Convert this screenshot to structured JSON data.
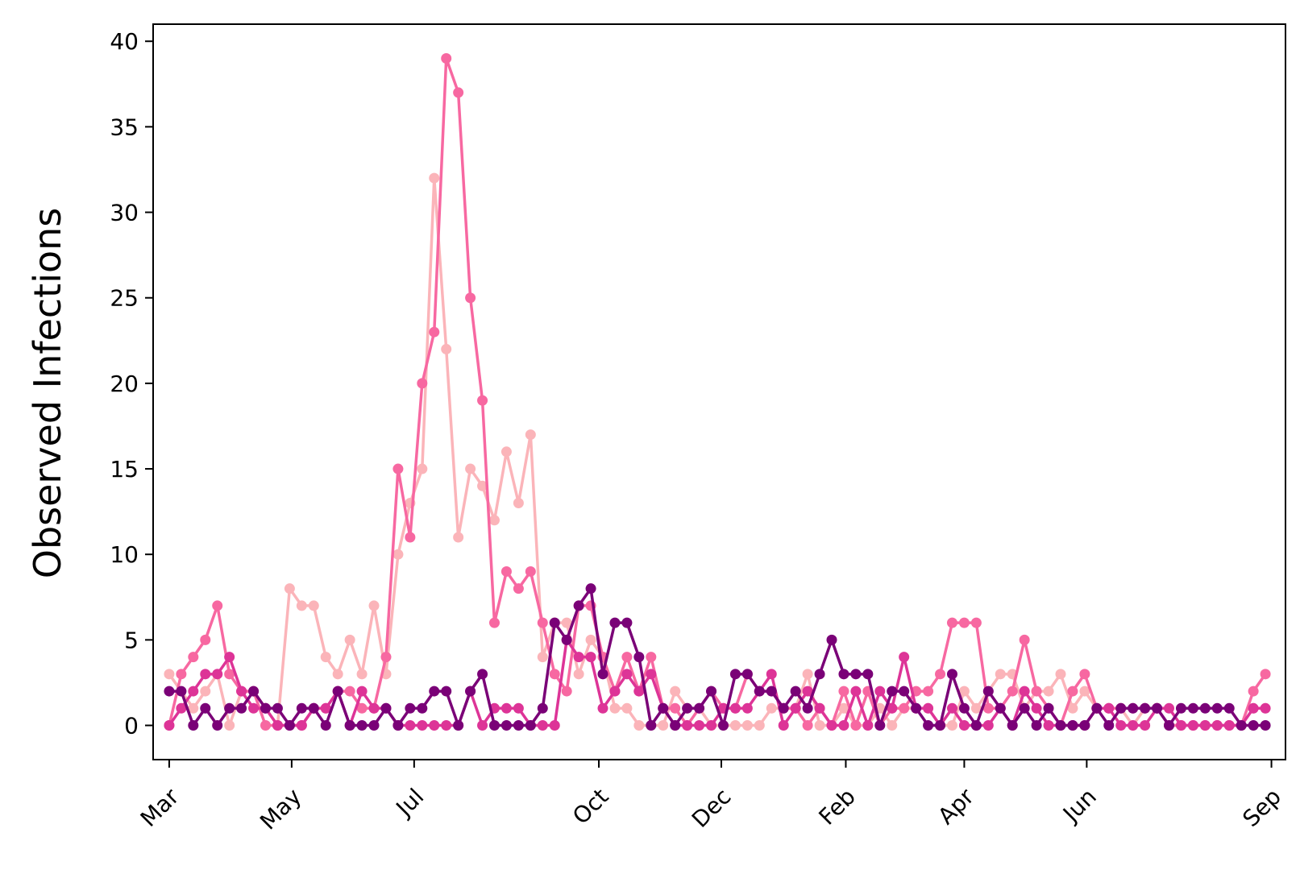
{
  "chart_data": {
    "type": "line",
    "title": "",
    "xlabel": "",
    "ylabel": "Observed Infections",
    "ylim": [
      -2,
      41
    ],
    "yticks": [
      0,
      5,
      10,
      15,
      20,
      25,
      30,
      35,
      40
    ],
    "xlim": [
      "2020-02-22",
      "2021-09-08"
    ],
    "xticks": [
      {
        "label": "Mar",
        "date": "2020-03-01"
      },
      {
        "label": "May",
        "date": "2020-05-01"
      },
      {
        "label": "Jul",
        "date": "2020-07-01"
      },
      {
        "label": "Oct",
        "date": "2020-10-01"
      },
      {
        "label": "Dec",
        "date": "2020-12-01"
      },
      {
        "label": "Feb",
        "date": "2021-02-01"
      },
      {
        "label": "Apr",
        "date": "2021-04-01"
      },
      {
        "label": "Jun",
        "date": "2021-06-01"
      },
      {
        "label": "Sep",
        "date": "2021-09-01"
      }
    ],
    "grid": false,
    "legend": null,
    "x": [
      "2020-03-01",
      "2020-03-07",
      "2020-03-13",
      "2020-03-19",
      "2020-03-25",
      "2020-03-31",
      "2020-04-06",
      "2020-04-12",
      "2020-04-18",
      "2020-04-24",
      "2020-04-30",
      "2020-05-06",
      "2020-05-12",
      "2020-05-18",
      "2020-05-24",
      "2020-05-30",
      "2020-06-05",
      "2020-06-11",
      "2020-06-17",
      "2020-06-23",
      "2020-06-29",
      "2020-07-05",
      "2020-07-11",
      "2020-07-17",
      "2020-07-23",
      "2020-07-29",
      "2020-08-04",
      "2020-08-10",
      "2020-08-16",
      "2020-08-22",
      "2020-08-28",
      "2020-09-03",
      "2020-09-09",
      "2020-09-15",
      "2020-09-21",
      "2020-09-27",
      "2020-10-03",
      "2020-10-09",
      "2020-10-15",
      "2020-10-21",
      "2020-10-27",
      "2020-11-02",
      "2020-11-08",
      "2020-11-14",
      "2020-11-20",
      "2020-11-26",
      "2020-12-02",
      "2020-12-08",
      "2020-12-14",
      "2020-12-20",
      "2020-12-26",
      "2021-01-01",
      "2021-01-07",
      "2021-01-13",
      "2021-01-19",
      "2021-01-25",
      "2021-01-31",
      "2021-02-06",
      "2021-02-12",
      "2021-02-18",
      "2021-02-24",
      "2021-03-02",
      "2021-03-08",
      "2021-03-14",
      "2021-03-20",
      "2021-03-26",
      "2021-04-01",
      "2021-04-07",
      "2021-04-13",
      "2021-04-19",
      "2021-04-25",
      "2021-05-01",
      "2021-05-07",
      "2021-05-13",
      "2021-05-19",
      "2021-05-25",
      "2021-05-31",
      "2021-06-06",
      "2021-06-12",
      "2021-06-18",
      "2021-06-24",
      "2021-06-30",
      "2021-07-06",
      "2021-07-12",
      "2021-07-18",
      "2021-07-24",
      "2021-07-30",
      "2021-08-05",
      "2021-08-11",
      "2021-08-17",
      "2021-08-23",
      "2021-08-29"
    ],
    "series": [
      {
        "color": "#fbb4b9",
        "values": [
          3,
          2,
          1,
          2,
          3,
          0,
          2,
          2,
          1,
          0,
          8,
          7,
          7,
          4,
          3,
          5,
          3,
          7,
          3,
          10,
          13,
          15,
          32,
          22,
          11,
          15,
          14,
          12,
          16,
          13,
          17,
          4,
          6,
          6,
          3,
          5,
          4,
          1,
          1,
          0,
          0,
          0,
          2,
          1,
          1,
          0,
          0,
          0,
          0,
          0,
          1,
          1,
          1,
          3,
          0,
          0,
          1,
          0,
          0,
          1,
          0,
          1,
          1,
          1,
          0,
          0,
          2,
          1,
          2,
          3,
          3,
          1,
          2,
          2,
          3,
          1,
          2,
          1,
          1,
          1,
          0,
          1,
          1,
          0,
          0,
          0,
          0,
          0,
          0,
          0,
          1,
          1
        ]
      },
      {
        "color": "#f768a1",
        "values": [
          0,
          3,
          4,
          5,
          7,
          3,
          2,
          2,
          0,
          0,
          0,
          0,
          1,
          1,
          2,
          2,
          1,
          1,
          4,
          15,
          11,
          20,
          23,
          39,
          37,
          25,
          19,
          6,
          9,
          8,
          9,
          6,
          3,
          2,
          7,
          7,
          4,
          2,
          4,
          2,
          4,
          1,
          1,
          0,
          1,
          2,
          1,
          1,
          3,
          2,
          2,
          1,
          1,
          0,
          1,
          0,
          2,
          0,
          2,
          0,
          1,
          1,
          2,
          2,
          3,
          6,
          6,
          6,
          1,
          1,
          2,
          5,
          2,
          1,
          0,
          2,
          3,
          1,
          1,
          1,
          1,
          1,
          1,
          0,
          0,
          0,
          0,
          0,
          0,
          0,
          2,
          3
        ]
      },
      {
        "color": "#dd3497",
        "values": [
          0,
          1,
          2,
          3,
          3,
          4,
          2,
          1,
          1,
          0,
          0,
          0,
          1,
          1,
          2,
          0,
          2,
          1,
          1,
          0,
          0,
          0,
          0,
          0,
          0,
          2,
          0,
          1,
          1,
          1,
          0,
          0,
          0,
          5,
          4,
          4,
          1,
          2,
          3,
          2,
          3,
          1,
          0,
          0,
          0,
          0,
          1,
          1,
          1,
          2,
          3,
          0,
          1,
          2,
          1,
          0,
          0,
          2,
          0,
          2,
          1,
          4,
          1,
          1,
          0,
          1,
          0,
          0,
          0,
          1,
          0,
          2,
          1,
          0,
          0,
          0,
          0,
          1,
          1,
          0,
          0,
          0,
          1,
          1,
          0,
          0,
          0,
          0,
          0,
          0,
          1,
          1
        ]
      },
      {
        "color": "#7a0177",
        "values": [
          2,
          2,
          0,
          1,
          0,
          1,
          1,
          2,
          1,
          1,
          0,
          1,
          1,
          0,
          2,
          0,
          0,
          0,
          1,
          0,
          1,
          1,
          2,
          2,
          0,
          2,
          3,
          0,
          0,
          0,
          0,
          1,
          6,
          5,
          7,
          8,
          3,
          6,
          6,
          4,
          0,
          1,
          0,
          1,
          1,
          2,
          0,
          3,
          3,
          2,
          2,
          1,
          2,
          1,
          3,
          5,
          3,
          3,
          3,
          0,
          2,
          2,
          1,
          0,
          0,
          3,
          1,
          0,
          2,
          1,
          0,
          1,
          0,
          1,
          0,
          0,
          0,
          1,
          0,
          1,
          1,
          1,
          1,
          0,
          1,
          1,
          1,
          1,
          1,
          0,
          0,
          0
        ]
      }
    ]
  }
}
